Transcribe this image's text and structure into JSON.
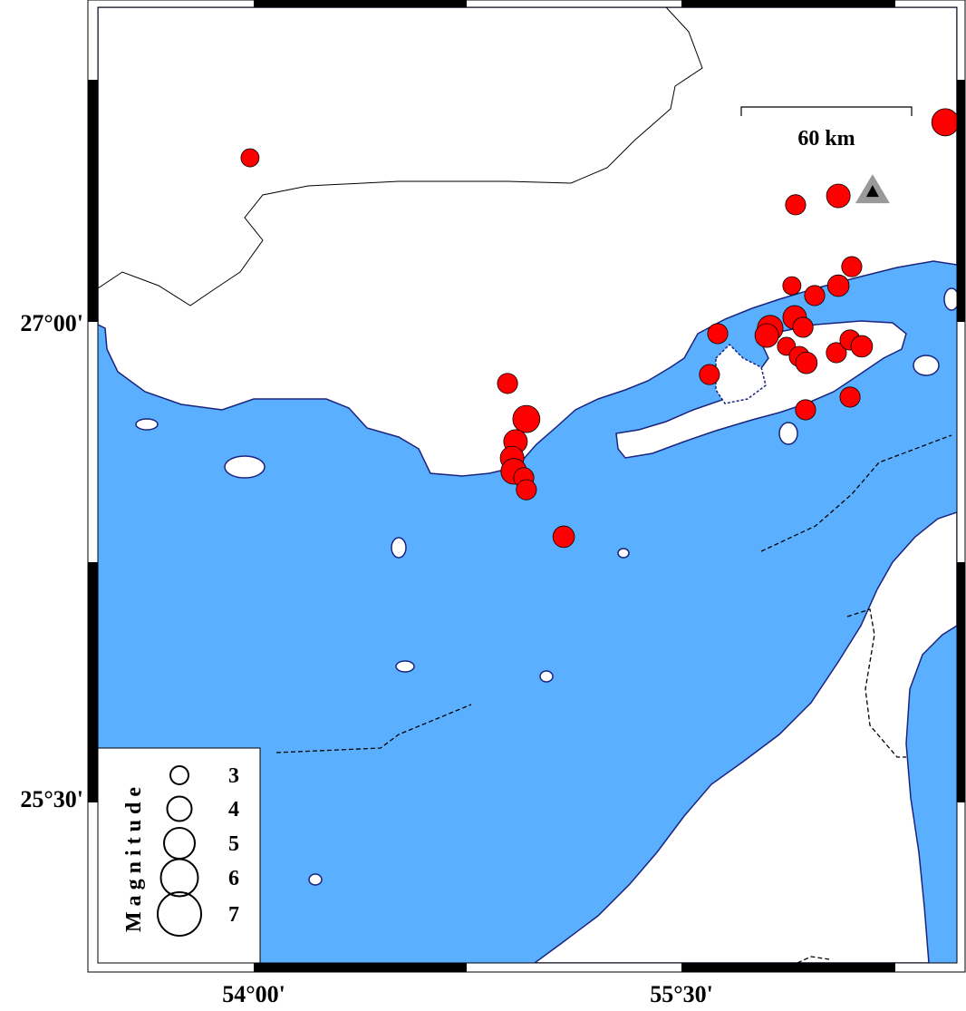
{
  "map": {
    "colors": {
      "sea": "#5AB0FF",
      "land": "#FFFFFF",
      "coast": "#1A237E",
      "event": "#FF0000",
      "station": "#999999"
    },
    "lon_range": [
      53.58,
      56.45
    ],
    "lat_range": [
      25.1,
      28.0
    ],
    "ticks": {
      "lat": [
        {
          "value": 27.0,
          "label": "27°00'"
        },
        {
          "value": 25.5,
          "label": "25°30'"
        }
      ],
      "lon": [
        {
          "value": 54.0,
          "label": "54°00'"
        },
        {
          "value": 55.5,
          "label": "55°30'"
        }
      ]
    },
    "scale_bar": {
      "label": "60 km"
    },
    "station": {
      "lon": 56.17,
      "lat": 27.414,
      "icon": "triangle-icon"
    },
    "legend": {
      "title": "Magnitude",
      "items": [
        {
          "mag": 3,
          "label": "3"
        },
        {
          "mag": 4,
          "label": "4"
        },
        {
          "mag": 5,
          "label": "5"
        },
        {
          "mag": 6,
          "label": "6"
        },
        {
          "mag": 7,
          "label": "7"
        }
      ]
    },
    "events": [
      {
        "lon": 53.987,
        "lat": 27.517,
        "mag": 3.0
      },
      {
        "lon": 56.425,
        "lat": 27.629,
        "mag": 4.3
      },
      {
        "lon": 56.05,
        "lat": 27.397,
        "mag": 3.8
      },
      {
        "lon": 55.9,
        "lat": 27.369,
        "mag": 3.3
      },
      {
        "lon": 56.097,
        "lat": 27.174,
        "mag": 3.3
      },
      {
        "lon": 55.887,
        "lat": 27.114,
        "mag": 3.0
      },
      {
        "lon": 55.967,
        "lat": 27.083,
        "mag": 3.3
      },
      {
        "lon": 56.05,
        "lat": 27.114,
        "mag": 3.5
      },
      {
        "lon": 55.897,
        "lat": 27.014,
        "mag": 3.8
      },
      {
        "lon": 55.926,
        "lat": 26.983,
        "mag": 3.3
      },
      {
        "lon": 55.811,
        "lat": 26.98,
        "mag": 4.1
      },
      {
        "lon": 55.799,
        "lat": 26.957,
        "mag": 3.8
      },
      {
        "lon": 55.868,
        "lat": 26.923,
        "mag": 3.0
      },
      {
        "lon": 55.913,
        "lat": 26.891,
        "mag": 3.3
      },
      {
        "lon": 55.938,
        "lat": 26.871,
        "mag": 3.5
      },
      {
        "lon": 55.627,
        "lat": 26.963,
        "mag": 3.3
      },
      {
        "lon": 55.598,
        "lat": 26.834,
        "mag": 3.3
      },
      {
        "lon": 56.043,
        "lat": 26.903,
        "mag": 3.3
      },
      {
        "lon": 56.091,
        "lat": 26.943,
        "mag": 3.3
      },
      {
        "lon": 56.132,
        "lat": 26.923,
        "mag": 3.5
      },
      {
        "lon": 56.091,
        "lat": 26.763,
        "mag": 3.3
      },
      {
        "lon": 55.935,
        "lat": 26.723,
        "mag": 3.3
      },
      {
        "lon": 54.89,
        "lat": 26.806,
        "mag": 3.3
      },
      {
        "lon": 54.956,
        "lat": 26.694,
        "mag": 4.3
      },
      {
        "lon": 54.918,
        "lat": 26.623,
        "mag": 3.8
      },
      {
        "lon": 54.906,
        "lat": 26.571,
        "mag": 3.8
      },
      {
        "lon": 54.912,
        "lat": 26.529,
        "mag": 4.1
      },
      {
        "lon": 54.947,
        "lat": 26.509,
        "mag": 3.3
      },
      {
        "lon": 54.956,
        "lat": 26.471,
        "mag": 3.3
      },
      {
        "lon": 55.087,
        "lat": 26.323,
        "mag": 3.5
      }
    ]
  }
}
